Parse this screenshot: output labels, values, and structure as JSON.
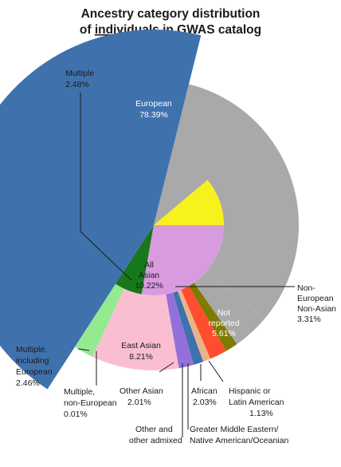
{
  "chart_data": {
    "type": "pie",
    "title_line1": "Ancestry category distribution",
    "title_line2_prefix": "of ",
    "title_line2_emph": "individuals",
    "title_line2_suffix": " in GWAS catalog",
    "slices": [
      {
        "key": "european",
        "label": "European",
        "value": 78.39,
        "display": "78.39%",
        "color": "#3f72ad"
      },
      {
        "key": "multiple",
        "label": "Multiple",
        "value": 2.48,
        "display": "2.48%",
        "color": "#17771c"
      },
      {
        "key": "all-asian",
        "label": "All Asian",
        "value": 10.22,
        "display": "10.22%",
        "color": "#d99be0"
      },
      {
        "key": "non-european-non-asian",
        "label": "Non-European Non-Asian",
        "value": 3.31,
        "display": "3.31%",
        "color": "#f7f21b"
      },
      {
        "key": "not-reported",
        "label": "Not reported",
        "value": 5.61,
        "display": "5.61%",
        "color": "#a9a9a9"
      }
    ],
    "sub_slices": [
      {
        "key": "multiple-including-european",
        "label": "Multiple, including European",
        "value": 2.46,
        "display": "2.46%",
        "color": "#94ea90",
        "parent": "multiple"
      },
      {
        "key": "multiple-non-european",
        "label": "Multiple, non-European",
        "value": 0.01,
        "display": "0.01%",
        "color": "#94ea90",
        "parent": "multiple"
      },
      {
        "key": "east-asian",
        "label": "East Asian",
        "value": 8.21,
        "display": "8.21%",
        "color": "#f9bfd0",
        "parent": "all-asian"
      },
      {
        "key": "other-asian",
        "label": "Other Asian",
        "value": 2.01,
        "display": "2.01%",
        "color": "#9370db",
        "parent": "all-asian"
      },
      {
        "key": "other-admixed",
        "label": "Other and other admixed",
        "value": null,
        "display": "",
        "color": "#3f72ad",
        "parent": "non-european-non-asian"
      },
      {
        "key": "greater-middle-eastern",
        "label": "Greater Middle Eastern/ Native American/Oceanian",
        "value": null,
        "display": "",
        "color": "#e9b48a",
        "parent": "non-european-non-asian"
      },
      {
        "key": "african",
        "label": "African",
        "value": 2.03,
        "display": "2.03%",
        "color": "#ff4d2e",
        "parent": "non-european-non-asian"
      },
      {
        "key": "hispanic",
        "label": "Hispanic or Latin American",
        "value": 1.13,
        "display": "1.13%",
        "color": "#7f7a00",
        "parent": "non-european-non-asian"
      }
    ],
    "text": {
      "european": "European",
      "european_pct": "78.39%",
      "multiple": "Multiple",
      "multiple_pct": "2.48%",
      "all_asian_1": "All",
      "all_asian_2": "Asian",
      "all_asian_pct": "10.22%",
      "east_asian": "East Asian",
      "east_asian_pct": "8.21%",
      "not_reported_1": "Not",
      "not_reported_2": "reported",
      "not_reported_pct": "5.61%",
      "nena_1": "Non-",
      "nena_2": "European",
      "nena_3": "Non-Asian",
      "nena_pct": "3.31%",
      "mult_inc_1": "Multiple,",
      "mult_inc_2": "including",
      "mult_inc_3": "European",
      "mult_inc_pct": "2.46%",
      "mult_non_1": "Multiple,",
      "mult_non_2": "non-European",
      "mult_non_pct": "0.01%",
      "other_asian": "Other Asian",
      "other_asian_pct": "2.01%",
      "african": "African",
      "african_pct": "2.03%",
      "hispanic_1": "Hispanic or",
      "hispanic_2": "Latin American",
      "hispanic_pct": "1.13%",
      "other_admixed_1": "Other and",
      "other_admixed_2": "other admixed",
      "gme_1": "Greater Middle Eastern/",
      "gme_2": "Native American/Oceanian"
    }
  }
}
